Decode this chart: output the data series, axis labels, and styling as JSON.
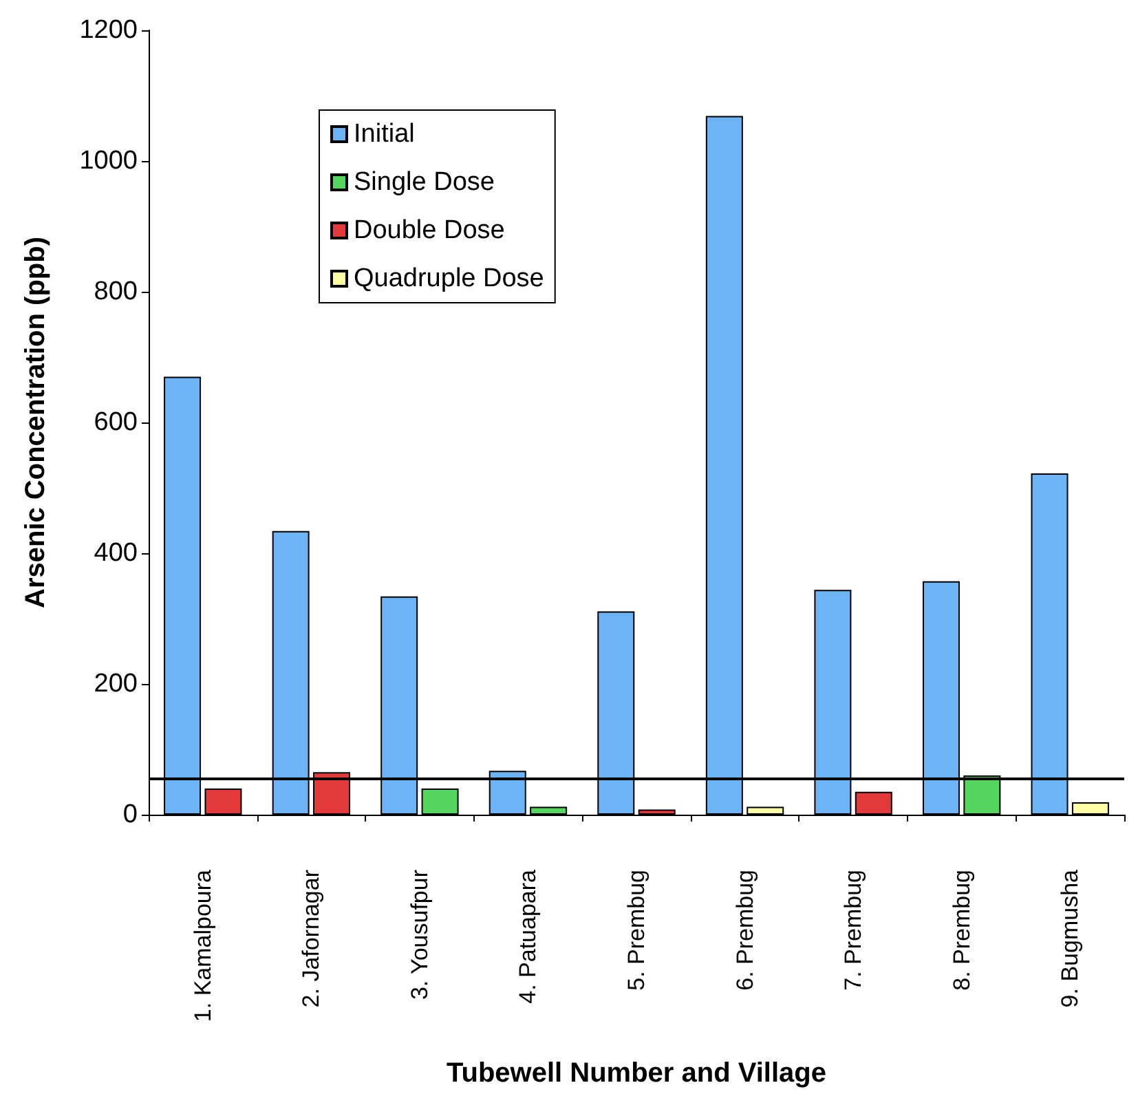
{
  "chart_data": {
    "type": "bar",
    "xlabel": "Tubewell Number and Village",
    "ylabel": "Arsenic Concentration (ppb)",
    "categories": [
      "1. Kamalpoura",
      "2. Jafornagar",
      "3. Yousufpur",
      "4. Patuapara",
      "5. Prembug",
      "6. Prembug",
      "7. Prembug",
      "8. Prembug",
      "9. Bugmusha"
    ],
    "series": [
      {
        "name": "Initial",
        "color": "#6cb4f5",
        "values": [
          670,
          434,
          334,
          67,
          311,
          1069,
          344,
          357,
          522
        ]
      },
      {
        "name": "Single Dose",
        "color": "#55d65f",
        "values": [
          null,
          null,
          40,
          12,
          null,
          null,
          null,
          60,
          null
        ]
      },
      {
        "name": "Double Dose",
        "color": "#e23a3a",
        "values": [
          40,
          65,
          null,
          null,
          8,
          null,
          35,
          null,
          null
        ]
      },
      {
        "name": "Quadruple Dose",
        "color": "#ffffa6",
        "values": [
          null,
          null,
          null,
          null,
          null,
          12,
          null,
          null,
          19
        ]
      }
    ],
    "ylim": [
      0,
      1200
    ],
    "yticks": [
      0,
      200,
      400,
      600,
      800,
      1000,
      1200
    ],
    "ref_lines": [
      {
        "axis": "y",
        "value": 55,
        "color": "#000000"
      }
    ],
    "grid": false,
    "legend": "top left"
  }
}
